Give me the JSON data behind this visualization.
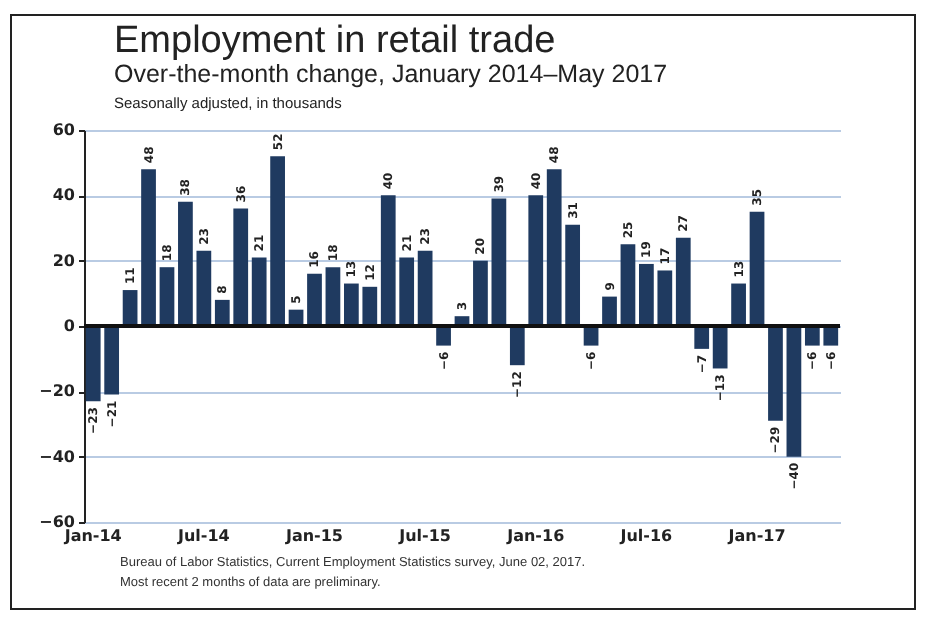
{
  "chart_data": {
    "type": "bar",
    "title": "Employment in retail trade",
    "subtitle": "Over-the-month change, January 2014–May 2017",
    "annotations": [
      "Seasonally adjusted, in thousands",
      "Bureau of Labor Statistics, Current Employment Statistics survey, June 02, 2017.",
      "Most recent 2 months of data are preliminary."
    ],
    "categories": [
      "Jan-14",
      null,
      null,
      null,
      null,
      null,
      "Jul-14",
      null,
      null,
      null,
      null,
      null,
      "Jan-15",
      null,
      null,
      null,
      null,
      null,
      "Jul-15",
      null,
      null,
      null,
      null,
      null,
      "Jan-16",
      null,
      null,
      null,
      null,
      null,
      "Jul-16",
      null,
      null,
      null,
      null,
      null,
      "Jan-17",
      null,
      null,
      null,
      null
    ],
    "values": [
      -23,
      -21,
      11,
      48,
      18,
      38,
      23,
      8,
      36,
      21,
      52,
      5,
      16,
      18,
      13,
      12,
      40,
      21,
      23,
      -6,
      3,
      20,
      39,
      -12,
      40,
      48,
      31,
      -6,
      9,
      25,
      19,
      17,
      27,
      -7,
      -13,
      13,
      35,
      -29,
      -40,
      -6,
      -6
    ],
    "color": "#1f3a60",
    "ylim": [
      -60,
      60
    ],
    "yticks": [
      -60,
      -40,
      -20,
      0,
      20,
      40,
      60
    ],
    "grid": "y",
    "data_labels": true
  }
}
